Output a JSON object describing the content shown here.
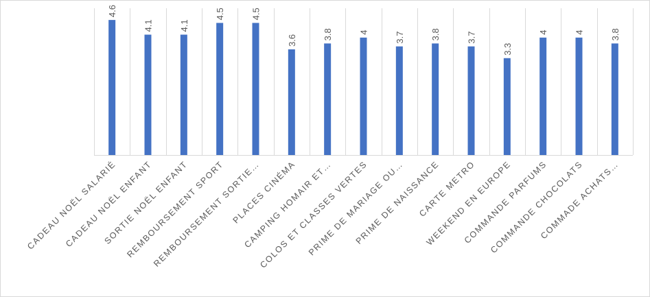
{
  "chart_data": {
    "type": "bar",
    "categories": [
      "CADEAU NOËL SALARIÉ",
      "CADEAU NOËL ENFANT",
      "SORTIE NOËL ENFANT",
      "REMBOURSEMENT SPORT",
      "REMBOURSEMENT SORTIE…",
      "PLACES CINÉMA",
      "CAMPING HOMAIR ET…",
      "COLOS ET CLASSES VERTES",
      "PRIME DE MARIAGE OU…",
      "PRIME DE NAISSANCE",
      "CARTE METRO",
      "WEEKEND EN EUROPE",
      "COMMANDE PARFUMS",
      "COMMANDE CHOCOLATS",
      "COMMADE ACHATS…"
    ],
    "values": [
      4.6,
      4.1,
      4.1,
      4.5,
      4.5,
      3.6,
      3.8,
      4,
      3.7,
      3.8,
      3.7,
      3.3,
      4,
      4,
      3.8
    ],
    "value_labels": [
      "4.6",
      "4.1",
      "4.1",
      "4.5",
      "4.5",
      "3.6",
      "3.8",
      "4",
      "3.7",
      "3.8",
      "3.7",
      "3.3",
      "4",
      "4",
      "3.8"
    ],
    "ylim": [
      0,
      5
    ],
    "grid": "vertical category separators",
    "bar_color": "#4472c4",
    "gridline_color": "#d9d9d9",
    "text_color": "#595959"
  }
}
